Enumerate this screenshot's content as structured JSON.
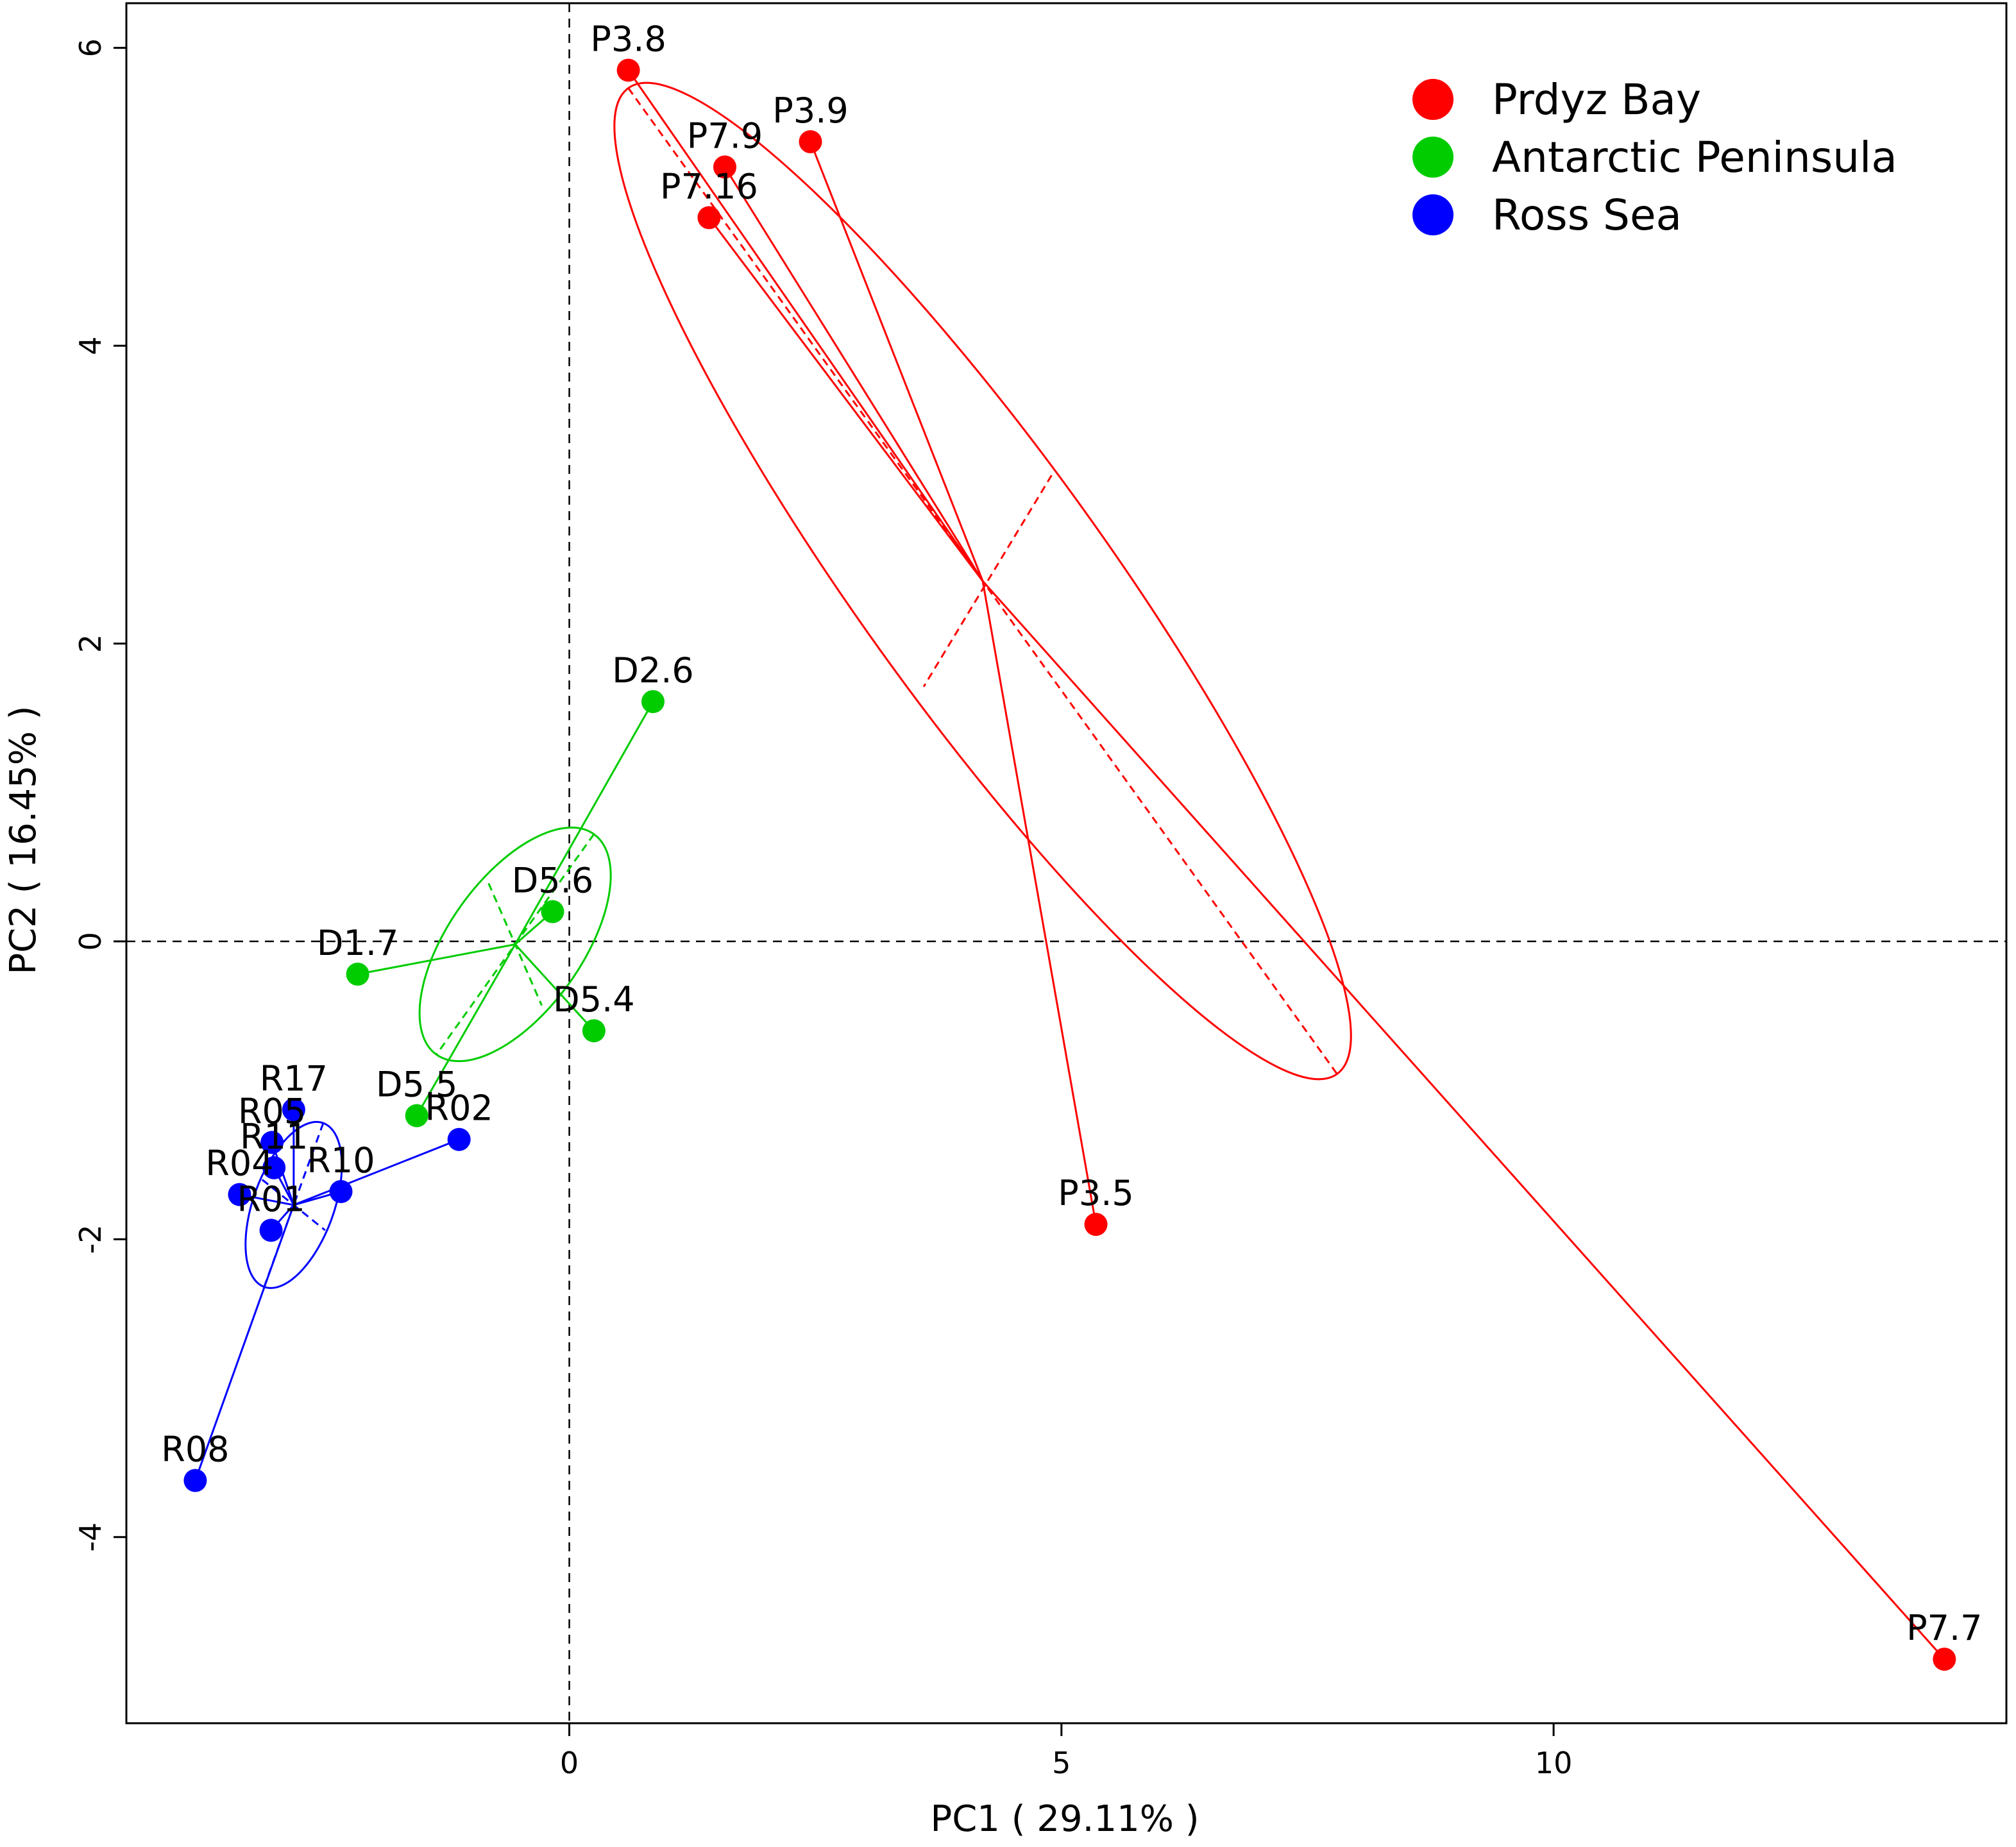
{
  "chart_data": {
    "type": "scatter",
    "title": "",
    "xlabel": "PC1 ( 29.11% )",
    "ylabel": "PC2 ( 16.45% )",
    "xlim": [
      -4.5,
      14.6
    ],
    "ylim": [
      -5.25,
      6.3
    ],
    "xticks": [
      0,
      5,
      10
    ],
    "yticks": [
      -4,
      -2,
      0,
      2,
      4,
      6
    ],
    "xtick_labels": [
      "0",
      "5",
      "10"
    ],
    "ytick_labels": [
      "-4",
      "-2",
      "0",
      "2",
      "4",
      "6"
    ],
    "reference_lines": {
      "x": 0,
      "y": 0
    },
    "legend": {
      "position": "top-right",
      "entries": [
        "Prdyz Bay",
        "Antarctic Peninsula",
        "Ross Sea"
      ]
    },
    "series": [
      {
        "name": "Prdyz Bay",
        "color": "#ff0000",
        "centroid": [
          4.2,
          2.42
        ],
        "ellipse": {
          "center": [
            4.2,
            2.42
          ],
          "major_end_1": [
            0.6,
            5.73
          ],
          "major_end_2": [
            7.8,
            -0.89
          ],
          "minor_end_1": [
            4.9,
            3.13
          ],
          "minor_end_2": [
            3.6,
            1.71
          ]
        },
        "points": [
          {
            "label": "P3.8",
            "x": 0.6,
            "y": 5.85
          },
          {
            "label": "P3.9",
            "x": 2.45,
            "y": 5.37
          },
          {
            "label": "P7.9",
            "x": 1.58,
            "y": 5.2
          },
          {
            "label": "P7.16",
            "x": 1.42,
            "y": 4.86
          },
          {
            "label": "P3.5",
            "x": 5.35,
            "y": -1.9
          },
          {
            "label": "P7.7",
            "x": 13.97,
            "y": -4.82
          }
        ]
      },
      {
        "name": "Antarctic Peninsula",
        "color": "#00cc00",
        "centroid": [
          -0.55,
          -0.02
        ],
        "ellipse": {
          "center": [
            -0.55,
            -0.02
          ],
          "major_end_1": [
            0.25,
            0.72
          ],
          "major_end_2": [
            -1.35,
            -0.76
          ],
          "minor_end_1": [
            -0.82,
            0.39
          ],
          "minor_end_2": [
            -0.28,
            -0.43
          ]
        },
        "points": [
          {
            "label": "D2.6",
            "x": 0.85,
            "y": 1.61
          },
          {
            "label": "D5.6",
            "x": -0.17,
            "y": 0.2
          },
          {
            "label": "D1.7",
            "x": -2.15,
            "y": -0.22
          },
          {
            "label": "D5.4",
            "x": 0.25,
            "y": -0.6
          },
          {
            "label": "D5.5",
            "x": -1.55,
            "y": -1.17
          }
        ]
      },
      {
        "name": "Ross Sea",
        "color": "#0000ff",
        "centroid": [
          -2.8,
          -1.77
        ],
        "ellipse": {
          "center": [
            -2.8,
            -1.77
          ],
          "major_end_1": [
            -2.5,
            -1.22
          ],
          "major_end_2": [
            -3.1,
            -2.32
          ],
          "minor_end_1": [
            -3.12,
            -1.6
          ],
          "minor_end_2": [
            -2.48,
            -1.94
          ]
        },
        "points": [
          {
            "label": "R17",
            "x": -2.8,
            "y": -1.13
          },
          {
            "label": "R05",
            "x": -3.02,
            "y": -1.35
          },
          {
            "label": "R11",
            "x": -3.0,
            "y": -1.52
          },
          {
            "label": "R04",
            "x": -3.35,
            "y": -1.7
          },
          {
            "label": "R10",
            "x": -2.32,
            "y": -1.68
          },
          {
            "label": "R01",
            "x": -3.03,
            "y": -1.94
          },
          {
            "label": "R02",
            "x": -1.12,
            "y": -1.33
          },
          {
            "label": "R08",
            "x": -3.8,
            "y": -3.62
          }
        ]
      }
    ]
  }
}
